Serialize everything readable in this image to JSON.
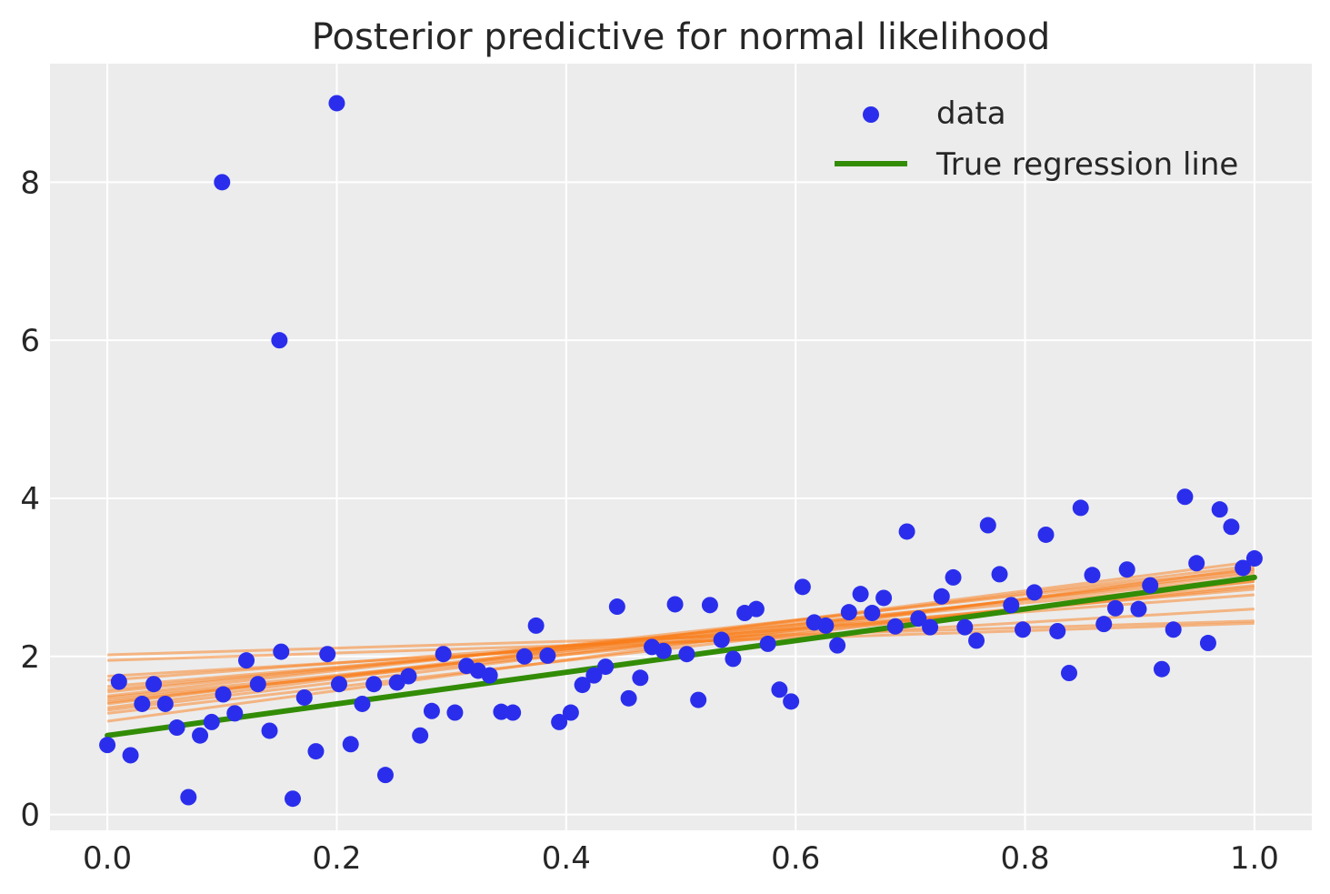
{
  "chart_data": {
    "type": "scatter",
    "title": "Posterior predictive for normal likelihood",
    "xlabel": "",
    "ylabel": "",
    "xlim": [
      -0.05,
      1.05
    ],
    "ylim": [
      -0.2,
      9.5
    ],
    "xticks": [
      0.0,
      0.2,
      0.4,
      0.6,
      0.8,
      1.0
    ],
    "xtick_labels": [
      "0.0",
      "0.2",
      "0.4",
      "0.6",
      "0.8",
      "1.0"
    ],
    "yticks": [
      0,
      2,
      4,
      6,
      8
    ],
    "ytick_labels": [
      "0",
      "2",
      "4",
      "6",
      "8"
    ],
    "grid": true,
    "legend_position": "top-right",
    "colors": {
      "background": "#ececec",
      "grid": "#ffffff",
      "data": "#2a2eec",
      "true_line": "#328c06",
      "posterior": "#fa7c17"
    },
    "legend": [
      {
        "label": "data",
        "kind": "marker"
      },
      {
        "label": "True regression line",
        "kind": "line"
      }
    ],
    "data_series": {
      "name": "data",
      "x": [
        0.0,
        0.0101,
        0.0202,
        0.0303,
        0.0404,
        0.0505,
        0.0606,
        0.0707,
        0.0808,
        0.0909,
        0.101,
        0.1111,
        0.1212,
        0.1313,
        0.1414,
        0.1515,
        0.1616,
        0.1717,
        0.1818,
        0.1919,
        0.202,
        0.2121,
        0.2222,
        0.2323,
        0.2424,
        0.2525,
        0.2626,
        0.2727,
        0.2828,
        0.2929,
        0.303,
        0.3131,
        0.3232,
        0.3333,
        0.3434,
        0.3535,
        0.3636,
        0.3737,
        0.3838,
        0.3939,
        0.404,
        0.4141,
        0.4242,
        0.4343,
        0.4444,
        0.4545,
        0.4646,
        0.4747,
        0.4848,
        0.4949,
        0.5051,
        0.5152,
        0.5253,
        0.5354,
        0.5455,
        0.5556,
        0.5657,
        0.5758,
        0.5859,
        0.596,
        0.6061,
        0.6162,
        0.6263,
        0.6364,
        0.6465,
        0.6566,
        0.6667,
        0.6768,
        0.6869,
        0.697,
        0.7071,
        0.7172,
        0.7273,
        0.7374,
        0.7475,
        0.7576,
        0.7677,
        0.7778,
        0.7879,
        0.798,
        0.8081,
        0.8182,
        0.8283,
        0.8384,
        0.8485,
        0.8586,
        0.8687,
        0.8788,
        0.8889,
        0.899,
        0.9091,
        0.9192,
        0.9293,
        0.9394,
        0.9495,
        0.9596,
        0.9697,
        0.9798,
        0.9899,
        1.0,
        0.1,
        0.15,
        0.2
      ],
      "y": [
        0.88,
        1.68,
        0.75,
        1.4,
        1.65,
        1.4,
        1.1,
        0.22,
        1.0,
        1.17,
        1.52,
        1.28,
        1.95,
        1.65,
        1.06,
        2.06,
        0.2,
        1.48,
        0.8,
        2.03,
        1.65,
        0.89,
        1.4,
        1.65,
        0.5,
        1.67,
        1.75,
        1.0,
        1.31,
        2.03,
        1.29,
        1.88,
        1.82,
        1.76,
        1.3,
        1.29,
        2.0,
        2.39,
        2.01,
        1.17,
        1.29,
        1.64,
        1.76,
        1.87,
        2.63,
        1.47,
        1.73,
        2.12,
        2.07,
        2.66,
        2.03,
        1.45,
        2.65,
        2.21,
        1.97,
        2.55,
        2.6,
        2.16,
        1.58,
        1.43,
        2.88,
        2.43,
        2.39,
        2.14,
        2.56,
        2.79,
        2.55,
        2.74,
        2.38,
        3.58,
        2.48,
        2.37,
        2.76,
        3.0,
        2.37,
        2.2,
        3.66,
        3.04,
        2.65,
        2.34,
        2.81,
        3.54,
        2.32,
        1.79,
        3.88,
        3.03,
        2.41,
        2.61,
        3.1,
        2.6,
        2.9,
        1.84,
        2.34,
        4.02,
        3.18,
        2.17,
        3.86,
        3.64,
        3.12,
        3.24,
        8.0,
        6.0,
        9.0
      ]
    },
    "true_regression_line": {
      "name": "True regression line",
      "x": [
        0.0,
        1.0
      ],
      "y": [
        1.0,
        3.0
      ]
    },
    "posterior_lines": {
      "name": "posterior predictive",
      "x": [
        0.0,
        1.0
      ],
      "intercepts": [
        2.02,
        1.95,
        1.75,
        1.7,
        1.62,
        1.58,
        1.55,
        1.5,
        1.48,
        1.45,
        1.42,
        1.4,
        1.35,
        1.32,
        1.28,
        1.18
      ],
      "endpoints": [
        2.45,
        2.42,
        2.6,
        2.78,
        2.85,
        2.95,
        3.0,
        3.1,
        2.9,
        2.88,
        3.05,
        3.15,
        3.2,
        3.08,
        2.95,
        3.12
      ]
    }
  }
}
